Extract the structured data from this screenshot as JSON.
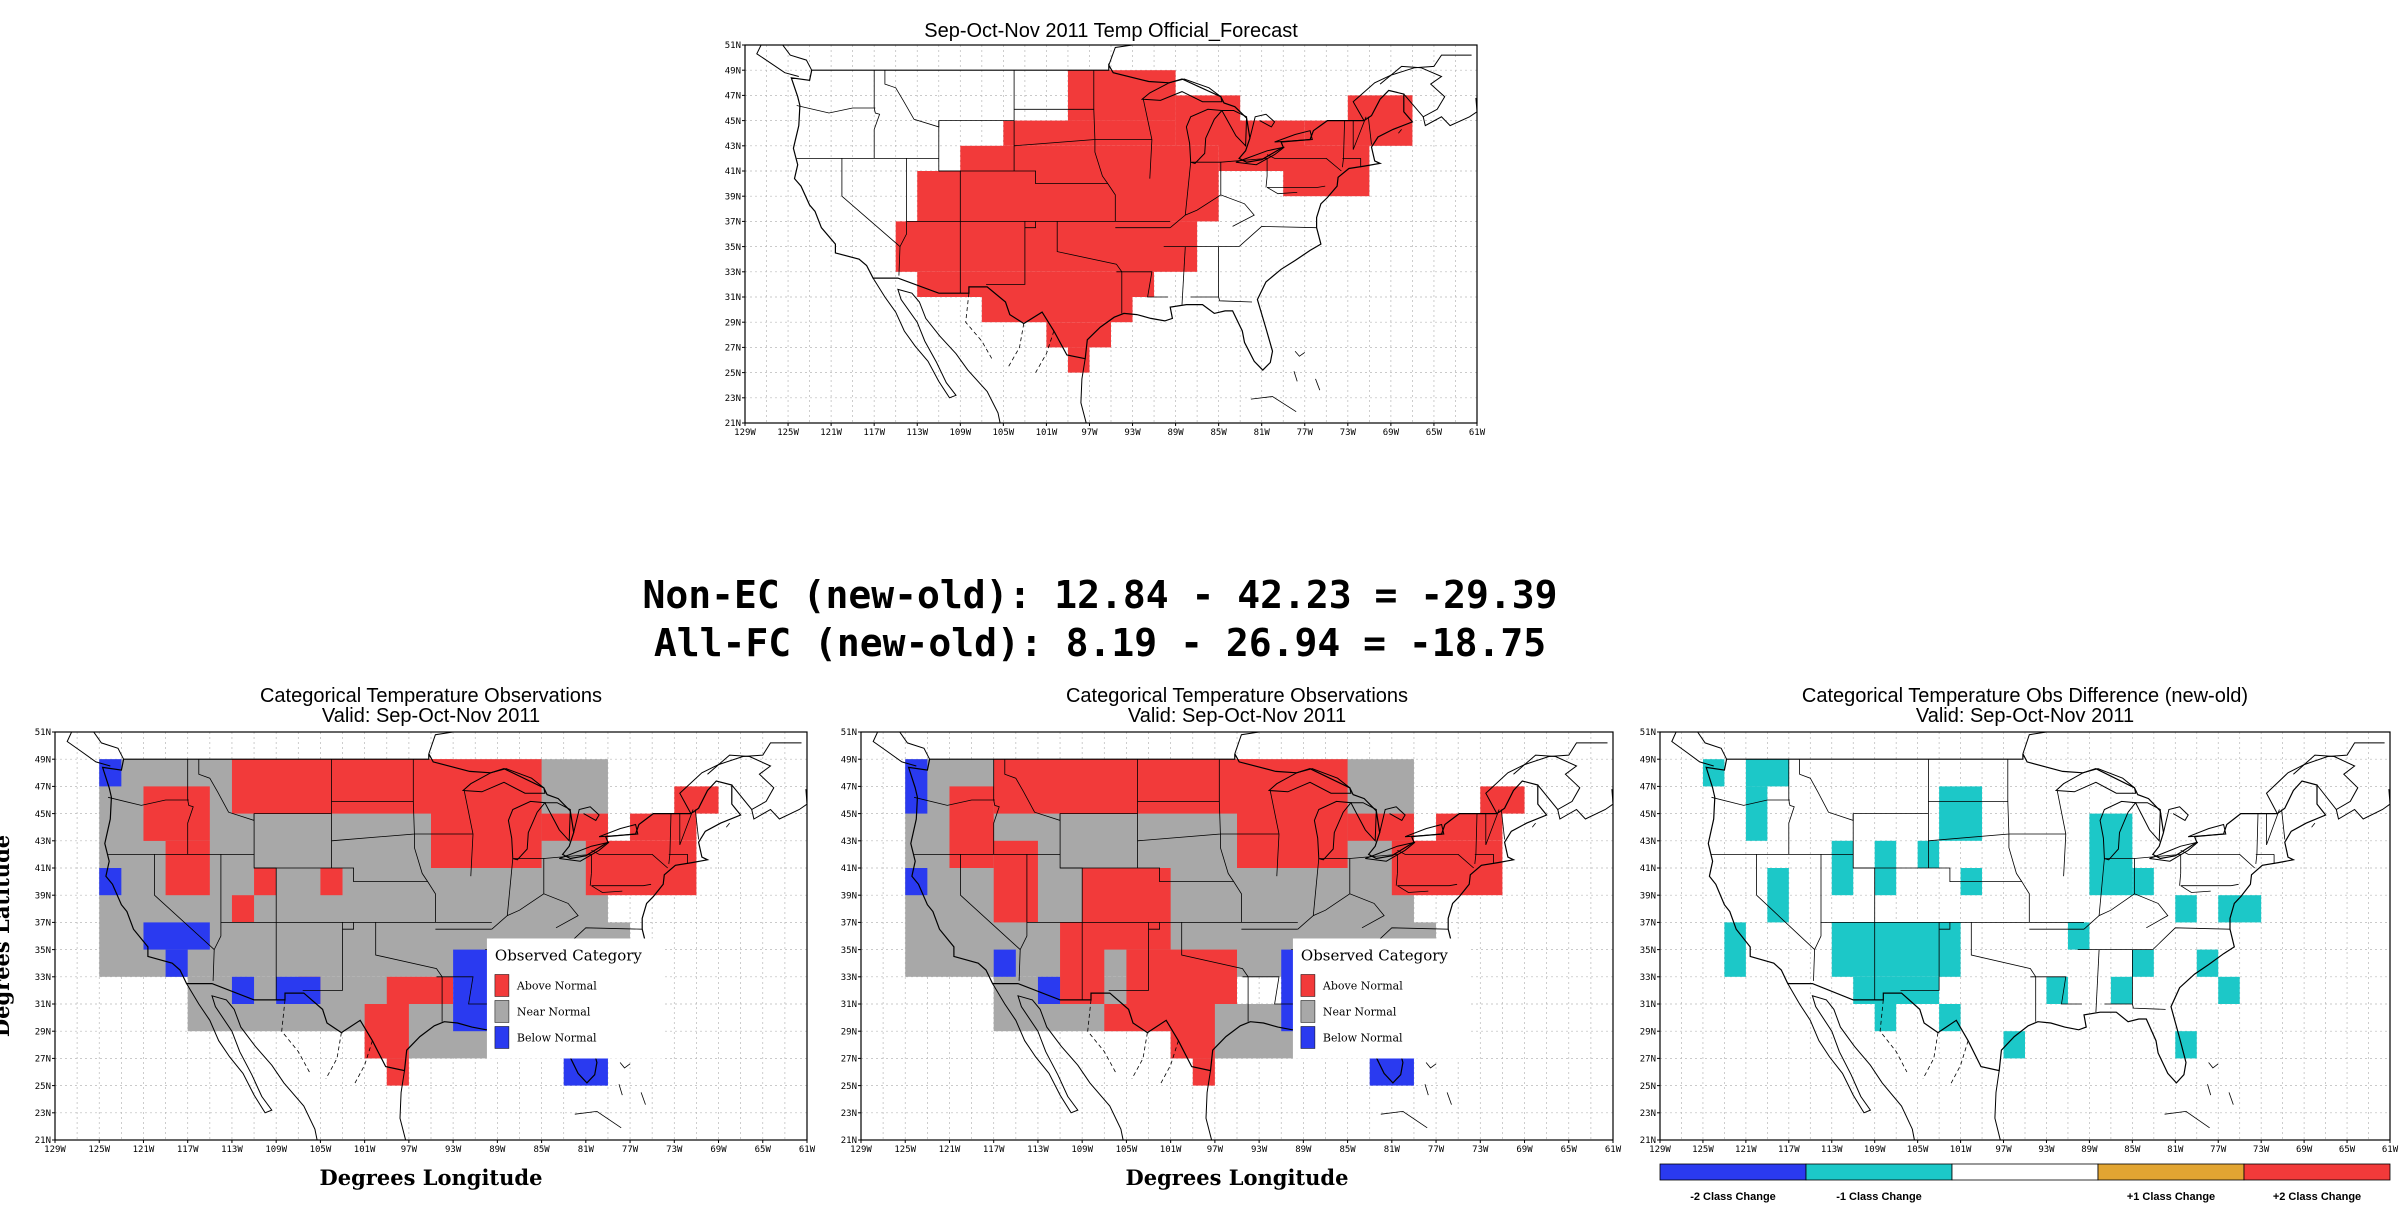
{
  "colors": {
    "above": "#f23a3a",
    "near": "#a8a8a8",
    "below": "#2a3af0",
    "cyan": "#1cc8c8",
    "orange": "#e2a532",
    "grid": "#b8b8b8"
  },
  "score_lines": [
    "Non-EC (new-old): 12.84 - 42.23 = -29.39",
    "All-FC (new-old): 8.19 - 26.94 = -18.75"
  ],
  "ticks": {
    "lat": [
      "51N",
      "49N",
      "47N",
      "45N",
      "43N",
      "41N",
      "39N",
      "37N",
      "35N",
      "33N",
      "31N",
      "29N",
      "27N",
      "25N",
      "23N",
      "21N"
    ],
    "lon": [
      "129W",
      "125W",
      "121W",
      "117W",
      "113W",
      "109W",
      "105W",
      "101W",
      "97W",
      "93W",
      "89W",
      "85W",
      "81W",
      "77W",
      "73W",
      "69W",
      "65W",
      "61W"
    ]
  },
  "panels": [
    {
      "title": "Sep-Oct-Nov 2011 Temp Official_Forecast",
      "subtitle": "",
      "xlabel": "",
      "ylabel": "",
      "legend": null
    },
    {
      "title": "Categorical Temperature Observations",
      "subtitle": "Valid: Sep-Oct-Nov 2011",
      "xlabel": "Degrees Longitude",
      "ylabel": "Degrees Latitude",
      "legend": {
        "title": "Observed Category",
        "items": [
          {
            "label": "Above Normal",
            "color": "#f23a3a"
          },
          {
            "label": "Near Normal",
            "color": "#a8a8a8"
          },
          {
            "label": "Below Normal",
            "color": "#2a3af0"
          }
        ]
      }
    },
    {
      "title": "Categorical Temperature Observations",
      "subtitle": "Valid: Sep-Oct-Nov 2011",
      "xlabel": "Degrees Longitude",
      "ylabel": "",
      "legend": {
        "title": "Observed Category",
        "items": [
          {
            "label": "Above Normal",
            "color": "#f23a3a"
          },
          {
            "label": "Near Normal",
            "color": "#a8a8a8"
          },
          {
            "label": "Below Normal",
            "color": "#2a3af0"
          }
        ]
      }
    },
    {
      "title": "Categorical Temperature Obs Difference (new-old)",
      "subtitle": "Valid: Sep-Oct-Nov 2011",
      "xlabel": "",
      "ylabel": "",
      "legend": null
    }
  ],
  "colorbar": [
    {
      "label": "-2 Class Change",
      "color": "#2a3af0"
    },
    {
      "label": "-1 Class Change",
      "color": "#1cc8c8"
    },
    {
      "label": "",
      "color": "#ffffff"
    },
    {
      "label": "+1 Class Change",
      "color": "#e2a532"
    },
    {
      "label": "+2 Class Change",
      "color": "#f23a3a"
    }
  ],
  "chart_data": [
    {
      "type": "heatmap",
      "title": "Sep-Oct-Nov 2011 Temp Official_Forecast",
      "x_range": [
        -129,
        -61
      ],
      "y_range": [
        21,
        51
      ],
      "cell_size_deg": 2,
      "regions": [
        {
          "category": "Above Normal",
          "color": "#f23a3a",
          "rects": [
            [
              -99,
              -89,
              45,
              49
            ],
            [
              -105,
              -89,
              43,
              45
            ],
            [
              -109,
              -85,
              41,
              43
            ],
            [
              -113,
              -85,
              37,
              41
            ],
            [
              -115,
              -87,
              33,
              37
            ],
            [
              -113,
              -91,
              31,
              33
            ],
            [
              -107,
              -93,
              29,
              31
            ],
            [
              -101,
              -95,
              27,
              29
            ],
            [
              -99,
              -97,
              25,
              27
            ],
            [
              -89,
              -83,
              43,
              47
            ],
            [
              -85,
              -77,
              41,
              45
            ],
            [
              -79,
              -71,
              39,
              43
            ],
            [
              -77,
              -71,
              43,
              45
            ],
            [
              -73,
              -67,
              43,
              47
            ],
            [
              -69,
              -67,
              45,
              47
            ]
          ]
        }
      ]
    },
    {
      "type": "heatmap",
      "title": "Categorical Temperature Observations",
      "x_range": [
        -129,
        -61
      ],
      "y_range": [
        21,
        51
      ],
      "cell_size_deg": 2,
      "regions": [
        {
          "category": "Near Normal",
          "color": "#a8a8a8",
          "rects": [
            [
              -125,
              -79,
              33,
              49
            ],
            [
              -117,
              -95,
              29,
              33
            ],
            [
              -101,
              -81,
              27,
              31
            ],
            [
              -81,
              -77,
              33,
              37
            ]
          ]
        },
        {
          "category": "Above Normal",
          "color": "#f23a3a",
          "rects": [
            [
              -113,
              -93,
              45,
              49
            ],
            [
              -95,
              -85,
              41,
              49
            ],
            [
              -85,
              -79,
              43,
              45
            ],
            [
              -81,
              -71,
              39,
              43
            ],
            [
              -77,
              -71,
              43,
              45
            ],
            [
              -73,
              -69,
              45,
              47
            ],
            [
              -121,
              -115,
              43,
              47
            ],
            [
              -119,
              -115,
              39,
              43
            ],
            [
              -121,
              -119,
              43,
              45
            ],
            [
              -111,
              -109,
              39,
              41
            ],
            [
              -105,
              -103,
              39,
              41
            ],
            [
              -113,
              -111,
              37,
              39
            ],
            [
              -99,
              -93,
              31,
              33
            ],
            [
              -101,
              -97,
              27,
              31
            ],
            [
              -99,
              -97,
              25,
              27
            ],
            [
              -107,
              -105,
              31,
              33
            ]
          ]
        },
        {
          "category": "Below Normal",
          "color": "#2a3af0",
          "rects": [
            [
              -125,
              -123,
              47,
              49
            ],
            [
              -125,
              -123,
              39,
              41
            ],
            [
              -121,
              -115,
              35,
              37
            ],
            [
              -119,
              -117,
              33,
              35
            ],
            [
              -113,
              -111,
              31,
              33
            ],
            [
              -109,
              -105,
              31,
              33
            ],
            [
              -93,
              -79,
              29,
              35
            ],
            [
              -83,
              -79,
              25,
              29
            ]
          ]
        }
      ]
    },
    {
      "type": "heatmap",
      "title": "Categorical Temperature Observations",
      "x_range": [
        -129,
        -61
      ],
      "y_range": [
        21,
        51
      ],
      "cell_size_deg": 2,
      "regions": [
        {
          "category": "Near Normal",
          "color": "#a8a8a8",
          "rects": [
            [
              -125,
              -79,
              33,
              49
            ],
            [
              -117,
              -95,
              29,
              33
            ],
            [
              -101,
              -81,
              27,
              31
            ],
            [
              -81,
              -77,
              33,
              37
            ]
          ]
        },
        {
          "category": "Above Normal",
          "color": "#f23a3a",
          "rects": [
            [
              -117,
              -93,
              45,
              49
            ],
            [
              -95,
              -85,
              41,
              49
            ],
            [
              -85,
              -79,
              43,
              45
            ],
            [
              -81,
              -71,
              39,
              43
            ],
            [
              -77,
              -71,
              43,
              45
            ],
            [
              -73,
              -69,
              45,
              47
            ],
            [
              -121,
              -117,
              41,
              47
            ],
            [
              -117,
              -113,
              37,
              43
            ],
            [
              -109,
              -101,
              35,
              41
            ],
            [
              -111,
              -107,
              31,
              37
            ],
            [
              -105,
              -95,
              31,
              35
            ],
            [
              -101,
              -97,
              27,
              31
            ],
            [
              -99,
              -97,
              25,
              27
            ],
            [
              -107,
              -99,
              29,
              31
            ]
          ]
        },
        {
          "category": "Below Normal",
          "color": "#2a3af0",
          "rects": [
            [
              -125,
              -123,
              45,
              49
            ],
            [
              -125,
              -123,
              39,
              41
            ],
            [
              -117,
              -115,
              33,
              35
            ],
            [
              -113,
              -111,
              31,
              33
            ],
            [
              -91,
              -81,
              29,
              35
            ],
            [
              -83,
              -79,
              25,
              29
            ]
          ]
        }
      ]
    },
    {
      "type": "heatmap",
      "title": "Categorical Temperature Obs Difference (new-old)",
      "x_range": [
        -129,
        -61
      ],
      "y_range": [
        21,
        51
      ],
      "cell_size_deg": 2,
      "regions": [
        {
          "category": "-1 Class Change",
          "color": "#1cc8c8",
          "rects": [
            [
              -125,
              -123,
              47,
              49
            ],
            [
              -121,
              -117,
              47,
              49
            ],
            [
              -121,
              -119,
              43,
              47
            ],
            [
              -113,
              -111,
              39,
              43
            ],
            [
              -109,
              -107,
              39,
              43
            ],
            [
              -105,
              -103,
              41,
              43
            ],
            [
              -101,
              -99,
              39,
              41
            ],
            [
              -103,
              -99,
              43,
              47
            ],
            [
              -119,
              -117,
              37,
              41
            ],
            [
              -123,
              -121,
              33,
              37
            ],
            [
              -113,
              -101,
              33,
              37
            ],
            [
              -111,
              -103,
              31,
              33
            ],
            [
              -109,
              -107,
              29,
              31
            ],
            [
              -103,
              -101,
              29,
              31
            ],
            [
              -97,
              -95,
              27,
              29
            ],
            [
              -93,
              -91,
              31,
              33
            ],
            [
              -87,
              -85,
              31,
              33
            ],
            [
              -89,
              -85,
              39,
              45
            ],
            [
              -85,
              -83,
              39,
              41
            ],
            [
              -81,
              -79,
              37,
              39
            ],
            [
              -77,
              -73,
              37,
              39
            ],
            [
              -79,
              -77,
              33,
              35
            ],
            [
              -77,
              -75,
              31,
              33
            ],
            [
              -81,
              -79,
              27,
              29
            ],
            [
              -91,
              -89,
              35,
              37
            ],
            [
              -85,
              -83,
              33,
              35
            ]
          ]
        }
      ]
    }
  ]
}
